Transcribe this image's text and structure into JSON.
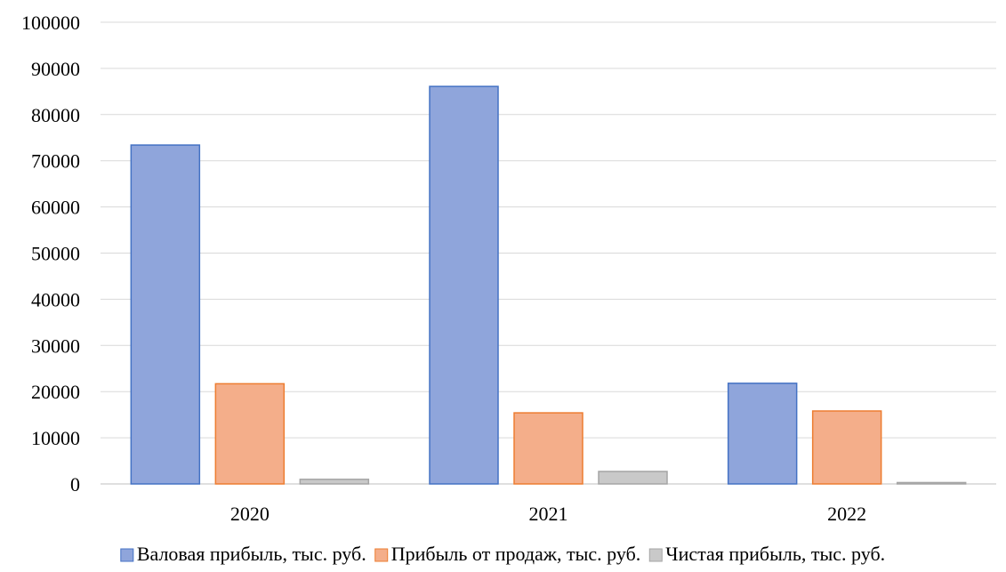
{
  "chart_data": {
    "type": "bar",
    "categories": [
      "2020",
      "2021",
      "2022"
    ],
    "series": [
      {
        "name": "Валовая прибыль, тыс. руб.",
        "values": [
          73400,
          86100,
          21800
        ],
        "color": "#8FA5DB",
        "stroke": "#4472C4"
      },
      {
        "name": "Прибыль от продаж, тыс. руб.",
        "values": [
          21700,
          15400,
          15800
        ],
        "color": "#F4AE8A",
        "stroke": "#ED7D31"
      },
      {
        "name": "Чистая прибыль, тыс. руб.",
        "values": [
          1000,
          2700,
          300
        ],
        "color": "#C9C9C9",
        "stroke": "#A5A5A5"
      }
    ],
    "title": "",
    "xlabel": "",
    "ylabel": "",
    "ylim": [
      0,
      100000
    ],
    "yticks": [
      "0",
      "10000",
      "20000",
      "30000",
      "40000",
      "50000",
      "60000",
      "70000",
      "80000",
      "90000",
      "100000"
    ],
    "grid": true,
    "legend_position": "bottom"
  }
}
